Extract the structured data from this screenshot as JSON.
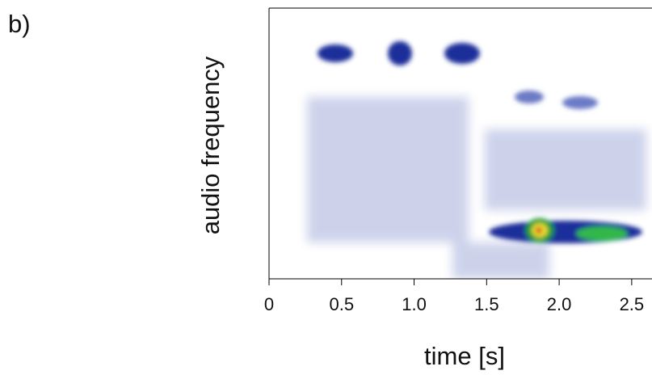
{
  "chart_data": {
    "type": "heatmap",
    "panel_label": "b)",
    "x_label": "time [s]",
    "y_label": "audio frequency",
    "xlim": [
      0,
      2.64
    ],
    "xticks": [
      0,
      0.5,
      {
        "value": 1,
        "label": "1.0"
      },
      1.5,
      {
        "value": 2,
        "label": "2.0"
      },
      2.5
    ]
  }
}
